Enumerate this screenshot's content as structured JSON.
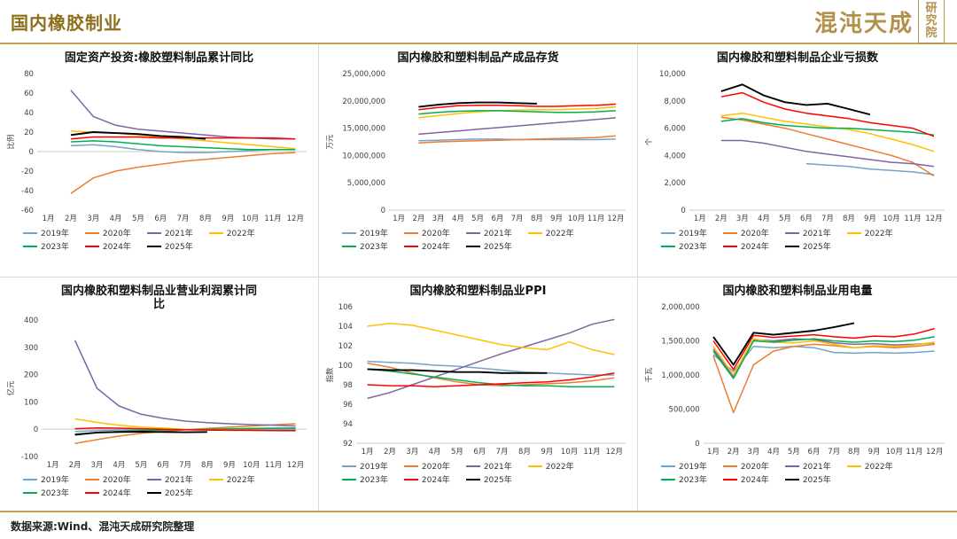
{
  "header": {
    "title": "国内橡胶制业",
    "logo_main": "混沌天成",
    "logo_seal": "研究院",
    "accent_color": "#C9A24B",
    "title_color": "#8E6F1A"
  },
  "footer": {
    "source": "数据来源:Wind、混沌天成研究院整理"
  },
  "months": [
    "1月",
    "2月",
    "3月",
    "4月",
    "5月",
    "6月",
    "7月",
    "8月",
    "9月",
    "10月",
    "11月",
    "12月"
  ],
  "series_meta": [
    {
      "name": "2019年",
      "color": "#74A3C7"
    },
    {
      "name": "2020年",
      "color": "#ED7D31"
    },
    {
      "name": "2021年",
      "color": "#8064A2"
    },
    {
      "name": "2022年",
      "color": "#FFC000"
    },
    {
      "name": "2023年",
      "color": "#00B050"
    },
    {
      "name": "2024年",
      "color": "#FF0000"
    },
    {
      "name": "2025年",
      "color": "#000000"
    }
  ],
  "chart_data": [
    {
      "type": "line",
      "title": "固定资产投资:橡胶塑料制品累计同比",
      "ylabel": "比例",
      "ylim": [
        -60,
        80
      ],
      "yticks": [
        -60,
        -40,
        -20,
        0,
        20,
        40,
        60,
        80
      ],
      "ytick_labels": [
        "-60",
        "-40",
        "-20",
        "0",
        "20",
        "40",
        "60",
        "80"
      ],
      "legend_position": "bottom",
      "grid": false,
      "series": [
        [
          null,
          6,
          7,
          5,
          2,
          0,
          -1,
          -1,
          0,
          1,
          2,
          2
        ],
        [
          null,
          -43,
          -27,
          -20,
          -16,
          -13,
          -10,
          -8,
          -6,
          -4,
          -2,
          -1
        ],
        [
          null,
          63,
          36,
          27,
          23,
          21,
          19,
          17,
          15,
          14,
          13,
          13
        ],
        [
          null,
          21,
          20,
          19,
          17,
          15,
          13,
          11,
          9,
          7,
          5,
          3
        ],
        [
          null,
          10,
          11,
          10,
          8,
          6,
          5,
          4,
          3,
          2,
          2,
          2
        ],
        [
          null,
          13,
          15,
          15,
          15,
          14,
          14,
          14,
          14,
          14,
          14,
          13
        ],
        [
          null,
          17,
          20,
          19,
          18,
          16,
          15,
          13,
          null,
          null,
          null,
          null
        ]
      ]
    },
    {
      "type": "line",
      "title": "国内橡胶和塑料制品产成品存货",
      "ylabel": "万元",
      "ylim": [
        0,
        25000000
      ],
      "yticks": [
        0,
        5000000,
        10000000,
        15000000,
        20000000,
        25000000
      ],
      "ytick_labels": [
        "0",
        "5,000,000",
        "10,000,000",
        "15,000,000",
        "20,000,000",
        "25,000,000"
      ],
      "legend_position": "bottom",
      "grid": false,
      "series": [
        [
          null,
          12700000,
          12800000,
          12900000,
          13000000,
          13000000,
          12900000,
          12900000,
          12900000,
          12900000,
          12900000,
          13000000
        ],
        [
          null,
          12300000,
          12500000,
          12600000,
          12700000,
          12800000,
          12900000,
          13000000,
          13100000,
          13200000,
          13300000,
          13600000
        ],
        [
          null,
          13900000,
          14200000,
          14500000,
          14800000,
          15100000,
          15400000,
          15700000,
          16000000,
          16300000,
          16600000,
          16900000
        ],
        [
          null,
          16900000,
          17300000,
          17700000,
          18000000,
          18200000,
          18300000,
          18400000,
          18400000,
          18500000,
          18600000,
          18900000
        ],
        [
          null,
          17600000,
          17900000,
          18100000,
          18200000,
          18200000,
          18100000,
          18000000,
          17900000,
          17900000,
          18000000,
          18200000
        ],
        [
          null,
          18400000,
          18800000,
          19100000,
          19200000,
          19200000,
          19100000,
          19000000,
          19000000,
          19100000,
          19200000,
          19400000
        ],
        [
          null,
          18900000,
          19300000,
          19600000,
          19700000,
          19700000,
          19600000,
          19500000,
          null,
          null,
          null,
          null
        ]
      ]
    },
    {
      "type": "line",
      "title": "国内橡胶和塑料制品企业亏损数",
      "ylabel": "个",
      "ylim": [
        0,
        10000
      ],
      "yticks": [
        0,
        2000,
        4000,
        6000,
        8000,
        10000
      ],
      "ytick_labels": [
        "0",
        "2,000",
        "4,000",
        "6,000",
        "8,000",
        "10,000"
      ],
      "legend_position": "bottom",
      "grid": false,
      "series": [
        [
          null,
          null,
          null,
          null,
          null,
          3400,
          3300,
          3200,
          3000,
          2900,
          2800,
          2600
        ],
        [
          null,
          6800,
          6600,
          6300,
          6000,
          5600,
          5200,
          4800,
          4400,
          4000,
          3500,
          2500
        ],
        [
          null,
          5100,
          5100,
          4900,
          4600,
          4300,
          4100,
          3900,
          3700,
          3500,
          3400,
          3200
        ],
        [
          null,
          6900,
          7100,
          6800,
          6500,
          6300,
          6100,
          5900,
          5600,
          5200,
          4800,
          4300
        ],
        [
          null,
          6500,
          6700,
          6400,
          6200,
          6100,
          6000,
          6000,
          5900,
          5800,
          5700,
          5500
        ],
        [
          null,
          8300,
          8600,
          7900,
          7400,
          7100,
          6900,
          6700,
          6400,
          6200,
          6000,
          5400
        ],
        [
          null,
          8700,
          9200,
          8400,
          7900,
          7700,
          7800,
          7400,
          7000,
          null,
          null,
          null
        ]
      ]
    },
    {
      "type": "line",
      "title": "国内橡胶和塑料制品业营业利润累计同比",
      "ylabel": "亿元",
      "ylim": [
        -100,
        400
      ],
      "yticks": [
        -100,
        0,
        100,
        200,
        300,
        400
      ],
      "ytick_labels": [
        "-100",
        "0",
        "100",
        "200",
        "300",
        "400"
      ],
      "legend_position": "bottom",
      "grid": false,
      "series": [
        [
          null,
          -8,
          -5,
          -3,
          -2,
          -2,
          -1,
          -1,
          -1,
          0,
          0,
          0
        ],
        [
          null,
          -52,
          -38,
          -25,
          -15,
          -8,
          -2,
          3,
          8,
          12,
          16,
          20
        ],
        [
          null,
          325,
          150,
          85,
          55,
          40,
          30,
          24,
          20,
          17,
          15,
          12
        ],
        [
          null,
          38,
          25,
          15,
          8,
          4,
          0,
          -2,
          -4,
          -5,
          -5,
          -6
        ],
        [
          null,
          -18,
          -12,
          -8,
          -5,
          -3,
          -2,
          0,
          2,
          3,
          4,
          5
        ],
        [
          null,
          2,
          5,
          4,
          2,
          0,
          -2,
          -3,
          -4,
          -4,
          -5,
          -5
        ],
        [
          null,
          -20,
          -12,
          -10,
          -9,
          -10,
          -11,
          -10,
          null,
          null,
          null,
          null
        ]
      ]
    },
    {
      "type": "line",
      "title": "国内橡胶和塑料制品业PPI",
      "ylabel": "指数",
      "ylim": [
        92,
        106
      ],
      "yticks": [
        92,
        94,
        96,
        98,
        100,
        102,
        104,
        106
      ],
      "ytick_labels": [
        "92",
        "94",
        "96",
        "98",
        "100",
        "102",
        "104",
        "106"
      ],
      "legend_position": "bottom",
      "grid": false,
      "series": [
        [
          100.4,
          100.3,
          100.2,
          100.0,
          99.9,
          99.7,
          99.5,
          99.3,
          99.2,
          99.1,
          99.0,
          99.0
        ],
        [
          100.2,
          99.8,
          99.2,
          98.7,
          98.3,
          98.0,
          97.9,
          98.0,
          98.1,
          98.2,
          98.4,
          98.7
        ],
        [
          96.6,
          97.2,
          98.0,
          98.8,
          99.6,
          100.4,
          101.2,
          101.9,
          102.6,
          103.3,
          104.2,
          104.7
        ],
        [
          104.0,
          104.3,
          104.1,
          103.6,
          103.1,
          102.6,
          102.1,
          101.8,
          101.6,
          102.4,
          101.6,
          101.1
        ],
        [
          99.6,
          99.4,
          99.1,
          98.8,
          98.5,
          98.2,
          98.0,
          97.9,
          97.9,
          97.8,
          97.8,
          97.8
        ],
        [
          98.0,
          97.9,
          97.9,
          97.8,
          97.9,
          98.0,
          98.1,
          98.2,
          98.3,
          98.5,
          98.8,
          99.2
        ],
        [
          99.6,
          99.5,
          99.5,
          99.4,
          99.3,
          99.3,
          99.2,
          99.2,
          99.2,
          null,
          null,
          null
        ]
      ]
    },
    {
      "type": "line",
      "title": "国内橡胶和塑料制品业用电量",
      "ylabel": "千瓦",
      "ylim": [
        0,
        2000000
      ],
      "yticks": [
        0,
        500000,
        1000000,
        1500000,
        2000000
      ],
      "ytick_labels": [
        "0",
        "500,000",
        "1,000,000",
        "1,500,000",
        "2,000,000"
      ],
      "legend_position": "bottom",
      "grid": false,
      "series": [
        [
          1300000,
          1050000,
          1420000,
          1400000,
          1420000,
          1400000,
          1330000,
          1320000,
          1330000,
          1320000,
          1330000,
          1350000
        ],
        [
          1280000,
          450000,
          1150000,
          1350000,
          1420000,
          1450000,
          1430000,
          1400000,
          1420000,
          1400000,
          1420000,
          1450000
        ],
        [
          1380000,
          980000,
          1520000,
          1500000,
          1530000,
          1520000,
          1470000,
          1450000,
          1460000,
          1440000,
          1450000,
          1470000
        ],
        [
          1420000,
          1000000,
          1530000,
          1480000,
          1470000,
          1500000,
          1450000,
          1400000,
          1430000,
          1420000,
          1440000,
          1480000
        ],
        [
          1350000,
          950000,
          1500000,
          1480000,
          1510000,
          1530000,
          1500000,
          1480000,
          1500000,
          1490000,
          1510000,
          1560000
        ],
        [
          1500000,
          1080000,
          1580000,
          1550000,
          1570000,
          1590000,
          1560000,
          1540000,
          1570000,
          1560000,
          1600000,
          1680000
        ],
        [
          1560000,
          1150000,
          1620000,
          1590000,
          1620000,
          1650000,
          1700000,
          1760000,
          null,
          null,
          null,
          null
        ]
      ]
    }
  ]
}
